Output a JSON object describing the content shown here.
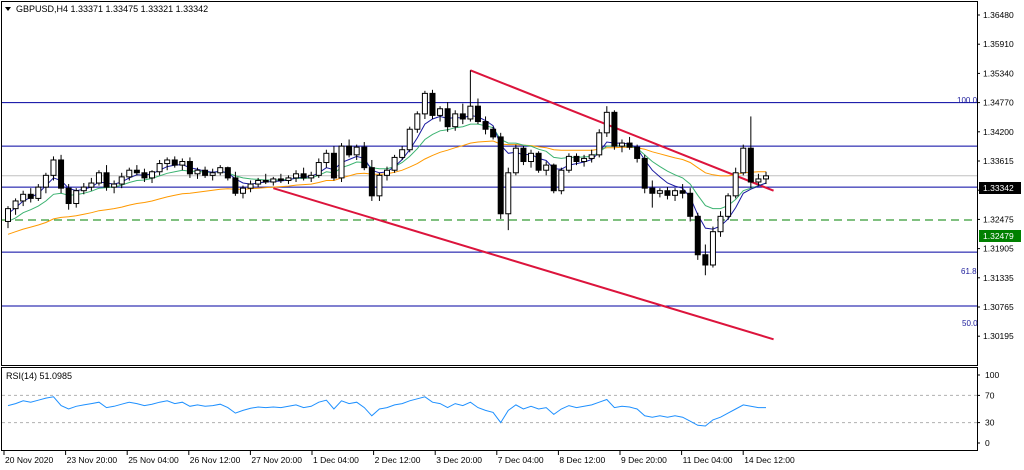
{
  "header": {
    "symbol_line": "GBPUSD,H4  1.33371 1.33475 1.33321 1.33342",
    "menu_icon": "triangle-down-icon"
  },
  "price_axis": {
    "ticks": [
      "1.36480",
      "1.35910",
      "1.35340",
      "1.34770",
      "1.34200",
      "1.33615",
      "1.33045",
      "1.32475",
      "1.31905",
      "1.31335",
      "1.30765",
      "1.30195"
    ]
  },
  "current_price": {
    "label": "1.33342",
    "color": "#000000"
  },
  "level_tag": {
    "label": "1.32479",
    "color": "#008000"
  },
  "fib_levels": [
    {
      "label": "100.0"
    },
    {
      "label": "61.8"
    },
    {
      "label": "50.0"
    }
  ],
  "rsi": {
    "label": "RSI(14) 51.0985",
    "ticks": [
      "100",
      "70",
      "30",
      "0"
    ]
  },
  "time_axis": {
    "labels": [
      "20 Nov 2020",
      "23 Nov 20:00",
      "25 Nov 04:00",
      "26 Nov 12:00",
      "27 Nov 20:00",
      "1 Dec 04:00",
      "2 Dec 12:00",
      "3 Dec 20:00",
      "7 Dec 04:00",
      "8 Dec 12:00",
      "9 Dec 20:00",
      "11 Dec 04:00",
      "14 Dec 12:00"
    ]
  },
  "colors": {
    "channel": "#dc143c",
    "horizontal_lines": "#0000a0",
    "dashed_level": "#008000",
    "ma_fast": "#1a1aa0",
    "ma_mid": "#3cb371",
    "ma_slow": "#ff9900",
    "rsi_line": "#1e90ff"
  },
  "chart_data": {
    "type": "candlestick",
    "instrument": "GBPUSD",
    "timeframe": "H4",
    "ylim": [
      1.3015,
      1.3665
    ],
    "candles": [
      [
        1.3245,
        1.3275,
        1.3232,
        1.327
      ],
      [
        1.327,
        1.329,
        1.3258,
        1.3285
      ],
      [
        1.3285,
        1.3305,
        1.3275,
        1.3298
      ],
      [
        1.3298,
        1.331,
        1.3282,
        1.329
      ],
      [
        1.329,
        1.3318,
        1.3285,
        1.3312
      ],
      [
        1.3312,
        1.334,
        1.33,
        1.3335
      ],
      [
        1.3335,
        1.3372,
        1.3325,
        1.3365
      ],
      [
        1.3365,
        1.3375,
        1.33,
        1.331
      ],
      [
        1.331,
        1.3318,
        1.3268,
        1.328
      ],
      [
        1.328,
        1.331,
        1.3272,
        1.3305
      ],
      [
        1.3305,
        1.332,
        1.3298,
        1.3312
      ],
      [
        1.3312,
        1.333,
        1.3305,
        1.332
      ],
      [
        1.332,
        1.3345,
        1.3315,
        1.334
      ],
      [
        1.334,
        1.3355,
        1.3305,
        1.3312
      ],
      [
        1.3312,
        1.3325,
        1.33,
        1.3318
      ],
      [
        1.3318,
        1.334,
        1.331,
        1.3332
      ],
      [
        1.3332,
        1.335,
        1.3325,
        1.3345
      ],
      [
        1.3345,
        1.3355,
        1.3335,
        1.334
      ],
      [
        1.334,
        1.3348,
        1.3322,
        1.333
      ],
      [
        1.333,
        1.3345,
        1.332,
        1.3342
      ],
      [
        1.3342,
        1.3365,
        1.3335,
        1.3358
      ],
      [
        1.3358,
        1.337,
        1.3345,
        1.3365
      ],
      [
        1.3365,
        1.3372,
        1.335,
        1.3355
      ],
      [
        1.3355,
        1.3368,
        1.3345,
        1.3362
      ],
      [
        1.3362,
        1.337,
        1.333,
        1.3338
      ],
      [
        1.3338,
        1.335,
        1.3328,
        1.3345
      ],
      [
        1.3345,
        1.3352,
        1.333,
        1.3335
      ],
      [
        1.3335,
        1.3348,
        1.3325,
        1.334
      ],
      [
        1.334,
        1.3355,
        1.3335,
        1.335
      ],
      [
        1.335,
        1.3352,
        1.3325,
        1.333
      ],
      [
        1.333,
        1.3342,
        1.3295,
        1.33
      ],
      [
        1.33,
        1.3315,
        1.329,
        1.331
      ],
      [
        1.331,
        1.3325,
        1.3302,
        1.3318
      ],
      [
        1.3318,
        1.333,
        1.3312,
        1.3325
      ],
      [
        1.3325,
        1.3338,
        1.3318,
        1.3322
      ],
      [
        1.3322,
        1.3332,
        1.3315,
        1.3328
      ],
      [
        1.3328,
        1.3338,
        1.332,
        1.3325
      ],
      [
        1.3325,
        1.3335,
        1.3318,
        1.333
      ],
      [
        1.333,
        1.3345,
        1.3322,
        1.3338
      ],
      [
        1.3338,
        1.335,
        1.3325,
        1.333
      ],
      [
        1.333,
        1.3342,
        1.3322,
        1.3335
      ],
      [
        1.3335,
        1.3368,
        1.333,
        1.336
      ],
      [
        1.336,
        1.3385,
        1.335,
        1.3378
      ],
      [
        1.3378,
        1.3392,
        1.3325,
        1.333
      ],
      [
        1.333,
        1.3398,
        1.3322,
        1.3392
      ],
      [
        1.3392,
        1.3405,
        1.337,
        1.3375
      ],
      [
        1.3375,
        1.3395,
        1.3365,
        1.339
      ],
      [
        1.339,
        1.34,
        1.3345,
        1.335
      ],
      [
        1.335,
        1.3365,
        1.3285,
        1.3295
      ],
      [
        1.3295,
        1.334,
        1.3285,
        1.3335
      ],
      [
        1.3335,
        1.3352,
        1.3325,
        1.3345
      ],
      [
        1.3345,
        1.3375,
        1.334,
        1.337
      ],
      [
        1.337,
        1.3392,
        1.3365,
        1.3385
      ],
      [
        1.3385,
        1.343,
        1.338,
        1.3425
      ],
      [
        1.3425,
        1.346,
        1.3418,
        1.3455
      ],
      [
        1.3455,
        1.35,
        1.3445,
        1.3495
      ],
      [
        1.3495,
        1.3502,
        1.3445,
        1.3452
      ],
      [
        1.3452,
        1.347,
        1.344,
        1.3465
      ],
      [
        1.3465,
        1.3478,
        1.342,
        1.343
      ],
      [
        1.343,
        1.3462,
        1.3422,
        1.3455
      ],
      [
        1.3455,
        1.3475,
        1.3435,
        1.3445
      ],
      [
        1.3445,
        1.354,
        1.344,
        1.347
      ],
      [
        1.347,
        1.3485,
        1.3435,
        1.344
      ],
      [
        1.344,
        1.345,
        1.3415,
        1.3425
      ],
      [
        1.3425,
        1.343,
        1.3405,
        1.341
      ],
      [
        1.341,
        1.3418,
        1.325,
        1.326
      ],
      [
        1.326,
        1.335,
        1.3228,
        1.334
      ],
      [
        1.334,
        1.3395,
        1.3335,
        1.3388
      ],
      [
        1.3388,
        1.3392,
        1.3355,
        1.3362
      ],
      [
        1.3362,
        1.3385,
        1.335,
        1.3378
      ],
      [
        1.3378,
        1.3382,
        1.334,
        1.3345
      ],
      [
        1.3345,
        1.3362,
        1.3335,
        1.3355
      ],
      [
        1.3355,
        1.3358,
        1.33,
        1.3305
      ],
      [
        1.3305,
        1.335,
        1.3298,
        1.3345
      ],
      [
        1.3345,
        1.3378,
        1.334,
        1.3372
      ],
      [
        1.3372,
        1.3378,
        1.3355,
        1.3362
      ],
      [
        1.3362,
        1.3375,
        1.3352,
        1.3368
      ],
      [
        1.3368,
        1.3385,
        1.336,
        1.3375
      ],
      [
        1.3375,
        1.3425,
        1.337,
        1.3418
      ],
      [
        1.3418,
        1.347,
        1.341,
        1.3458
      ],
      [
        1.3458,
        1.3462,
        1.3385,
        1.3392
      ],
      [
        1.3392,
        1.3405,
        1.338,
        1.3398
      ],
      [
        1.3398,
        1.341,
        1.3385,
        1.339
      ],
      [
        1.339,
        1.3395,
        1.336,
        1.3368
      ],
      [
        1.3368,
        1.3375,
        1.33,
        1.331
      ],
      [
        1.331,
        1.3325,
        1.3272,
        1.33
      ],
      [
        1.33,
        1.331,
        1.3292,
        1.3305
      ],
      [
        1.3305,
        1.3312,
        1.3288,
        1.3296
      ],
      [
        1.3296,
        1.331,
        1.3285,
        1.3305
      ],
      [
        1.3305,
        1.3318,
        1.329,
        1.33
      ],
      [
        1.33,
        1.331,
        1.3245,
        1.3255
      ],
      [
        1.3255,
        1.3262,
        1.317,
        1.318
      ],
      [
        1.318,
        1.32,
        1.314,
        1.316
      ],
      [
        1.316,
        1.3235,
        1.3155,
        1.3225
      ],
      [
        1.3225,
        1.3265,
        1.3215,
        1.3255
      ],
      [
        1.3255,
        1.33,
        1.3248,
        1.3295
      ],
      [
        1.3295,
        1.335,
        1.329,
        1.334
      ],
      [
        1.334,
        1.3395,
        1.3335,
        1.3388
      ],
      [
        1.3388,
        1.345,
        1.331,
        1.3322
      ],
      [
        1.3322,
        1.3338,
        1.3315,
        1.3328
      ],
      [
        1.3328,
        1.3342,
        1.3318,
        1.3334
      ]
    ],
    "ma_fast": [
      1.326,
      1.3272,
      1.3285,
      1.3292,
      1.33,
      1.3315,
      1.333,
      1.3325,
      1.331,
      1.3305,
      1.3308,
      1.3312,
      1.3322,
      1.332,
      1.3318,
      1.3322,
      1.333,
      1.3336,
      1.3335,
      1.3338,
      1.3345,
      1.3352,
      1.3355,
      1.3356,
      1.335,
      1.3347,
      1.3343,
      1.3341,
      1.3343,
      1.334,
      1.3328,
      1.332,
      1.3318,
      1.332,
      1.3322,
      1.3323,
      1.3324,
      1.3326,
      1.333,
      1.3331,
      1.3333,
      1.334,
      1.335,
      1.3346,
      1.336,
      1.3366,
      1.3372,
      1.3368,
      1.3345,
      1.334,
      1.3342,
      1.3352,
      1.3366,
      1.3385,
      1.3408,
      1.3435,
      1.3445,
      1.345,
      1.3446,
      1.3448,
      1.3447,
      1.3452,
      1.3449,
      1.3442,
      1.3432,
      1.3394,
      1.3378,
      1.338,
      1.3375,
      1.3376,
      1.3368,
      1.3364,
      1.3348,
      1.3347,
      1.3355,
      1.3358,
      1.3361,
      1.3366,
      1.338,
      1.34,
      1.3398,
      1.3398,
      1.3396,
      1.3388,
      1.3365,
      1.3345,
      1.3332,
      1.332,
      1.3314,
      1.331,
      1.3292,
      1.3258,
      1.3232,
      1.323,
      1.3236,
      1.325,
      1.3272,
      1.33,
      1.3308,
      1.3314,
      1.332
    ],
    "ma_mid": [
      1.3245,
      1.3252,
      1.3262,
      1.3268,
      1.3275,
      1.3285,
      1.3298,
      1.33,
      1.3296,
      1.3297,
      1.33,
      1.3304,
      1.331,
      1.3311,
      1.3312,
      1.3316,
      1.3321,
      1.3325,
      1.3326,
      1.3329,
      1.3334,
      1.3339,
      1.3342,
      1.3345,
      1.3343,
      1.3343,
      1.3341,
      1.3341,
      1.3342,
      1.334,
      1.3334,
      1.333,
      1.3328,
      1.3327,
      1.3326,
      1.3326,
      1.3326,
      1.3327,
      1.3329,
      1.3329,
      1.333,
      1.3335,
      1.3342,
      1.334,
      1.335,
      1.3355,
      1.3361,
      1.336,
      1.335,
      1.3348,
      1.3348,
      1.3352,
      1.336,
      1.3372,
      1.3387,
      1.3405,
      1.3415,
      1.3422,
      1.3424,
      1.3428,
      1.343,
      1.3435,
      1.3435,
      1.3432,
      1.3428,
      1.3405,
      1.3398,
      1.3398,
      1.3394,
      1.3392,
      1.3386,
      1.3382,
      1.337,
      1.3368,
      1.337,
      1.337,
      1.3371,
      1.3372,
      1.338,
      1.3392,
      1.3392,
      1.3393,
      1.3392,
      1.3388,
      1.3375,
      1.3362,
      1.3352,
      1.3343,
      1.3336,
      1.333,
      1.3318,
      1.3296,
      1.3276,
      1.327,
      1.327,
      1.3276,
      1.3288,
      1.3305,
      1.331,
      1.3315,
      1.332
    ],
    "ma_slow": [
      1.322,
      1.3225,
      1.323,
      1.3234,
      1.3238,
      1.3243,
      1.325,
      1.3253,
      1.3254,
      1.3256,
      1.3259,
      1.3262,
      1.3266,
      1.3268,
      1.327,
      1.3273,
      1.3277,
      1.328,
      1.3282,
      1.3285,
      1.3289,
      1.3293,
      1.3296,
      1.3299,
      1.33,
      1.3302,
      1.3304,
      1.3306,
      1.3308,
      1.3309,
      1.3308,
      1.3308,
      1.3309,
      1.331,
      1.3311,
      1.3312,
      1.3313,
      1.3314,
      1.3316,
      1.3317,
      1.3318,
      1.3321,
      1.3325,
      1.3325,
      1.333,
      1.3334,
      1.3338,
      1.3339,
      1.3337,
      1.3337,
      1.3338,
      1.3341,
      1.3345,
      1.3351,
      1.3358,
      1.3367,
      1.3374,
      1.338,
      1.3384,
      1.3389,
      1.3393,
      1.3398,
      1.34,
      1.3401,
      1.3402,
      1.3396,
      1.3395,
      1.3395,
      1.3394,
      1.3393,
      1.3391,
      1.3389,
      1.3385,
      1.3384,
      1.3384,
      1.3384,
      1.3384,
      1.3384,
      1.3386,
      1.3389,
      1.3389,
      1.339,
      1.339,
      1.3389,
      1.3386,
      1.3381,
      1.3377,
      1.3373,
      1.3369,
      1.3366,
      1.336,
      1.335,
      1.334,
      1.3336,
      1.3334,
      1.3334,
      1.3336,
      1.334,
      1.3341,
      1.3342,
      1.3342
    ],
    "rsi_values": [
      55,
      58,
      62,
      60,
      63,
      66,
      68,
      55,
      50,
      54,
      56,
      58,
      60,
      52,
      54,
      57,
      60,
      58,
      55,
      57,
      60,
      62,
      58,
      60,
      54,
      56,
      54,
      55,
      57,
      52,
      44,
      48,
      51,
      53,
      52,
      53,
      52,
      54,
      56,
      52,
      54,
      60,
      63,
      50,
      62,
      58,
      60,
      52,
      40,
      50,
      52,
      56,
      58,
      62,
      65,
      68,
      60,
      58,
      52,
      58,
      55,
      60,
      52,
      48,
      45,
      30,
      48,
      56,
      50,
      54,
      50,
      52,
      42,
      50,
      55,
      52,
      54,
      56,
      60,
      64,
      52,
      54,
      53,
      50,
      40,
      38,
      40,
      38,
      40,
      38,
      32,
      26,
      25,
      34,
      38,
      44,
      50,
      56,
      54,
      52,
      52
    ],
    "horizontal_levels": [
      1.3477,
      1.3392,
      1.3312,
      1.3185,
      1.308
    ],
    "dashed_level": 1.32479,
    "current_price": 1.33342,
    "channel_upper": [
      [
        61,
        1.354
      ],
      [
        101,
        1.3305
      ]
    ],
    "channel_lower": [
      [
        35,
        1.331
      ],
      [
        101,
        1.3015
      ]
    ]
  }
}
